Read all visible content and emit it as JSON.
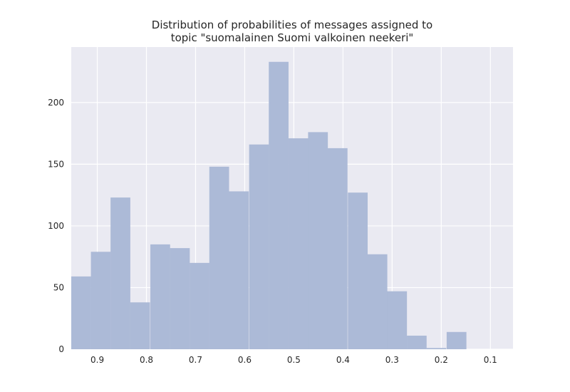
{
  "chart_data": {
    "type": "bar",
    "title_line1": "Distribution of probabilities of messages assigned to",
    "title_line2": "topic \"suomalainen Suomi valkoinen neekeri\"",
    "xlabel": "",
    "ylabel": "",
    "x_inverted": true,
    "xlim": [
      0.953,
      0.054
    ],
    "ylim": [
      0,
      245
    ],
    "x_ticks": [
      0.9,
      0.8,
      0.7,
      0.6,
      0.5,
      0.4,
      0.3,
      0.2,
      0.1
    ],
    "x_tick_labels": [
      "0.9",
      "0.8",
      "0.7",
      "0.6",
      "0.5",
      "0.4",
      "0.3",
      "0.2",
      "0.1"
    ],
    "y_ticks": [
      0,
      50,
      100,
      150,
      200
    ],
    "y_tick_labels": [
      "0",
      "50",
      "100",
      "150",
      "200"
    ],
    "bin_width": 0.0402,
    "bins": [
      {
        "x_start": 0.953,
        "value": 59
      },
      {
        "x_start": 0.913,
        "value": 79
      },
      {
        "x_start": 0.873,
        "value": 123
      },
      {
        "x_start": 0.833,
        "value": 38
      },
      {
        "x_start": 0.792,
        "value": 85
      },
      {
        "x_start": 0.752,
        "value": 82
      },
      {
        "x_start": 0.712,
        "value": 70
      },
      {
        "x_start": 0.672,
        "value": 148
      },
      {
        "x_start": 0.632,
        "value": 128
      },
      {
        "x_start": 0.591,
        "value": 166
      },
      {
        "x_start": 0.551,
        "value": 233
      },
      {
        "x_start": 0.511,
        "value": 171
      },
      {
        "x_start": 0.471,
        "value": 176
      },
      {
        "x_start": 0.431,
        "value": 163
      },
      {
        "x_start": 0.39,
        "value": 127
      },
      {
        "x_start": 0.35,
        "value": 77
      },
      {
        "x_start": 0.31,
        "value": 47
      },
      {
        "x_start": 0.27,
        "value": 11
      },
      {
        "x_start": 0.23,
        "value": 1
      },
      {
        "x_start": 0.189,
        "value": 14
      }
    ],
    "grid": true,
    "colors": {
      "bar": "#A9B8D6",
      "background": "#EAEAF2",
      "grid": "#FFFFFF"
    }
  }
}
